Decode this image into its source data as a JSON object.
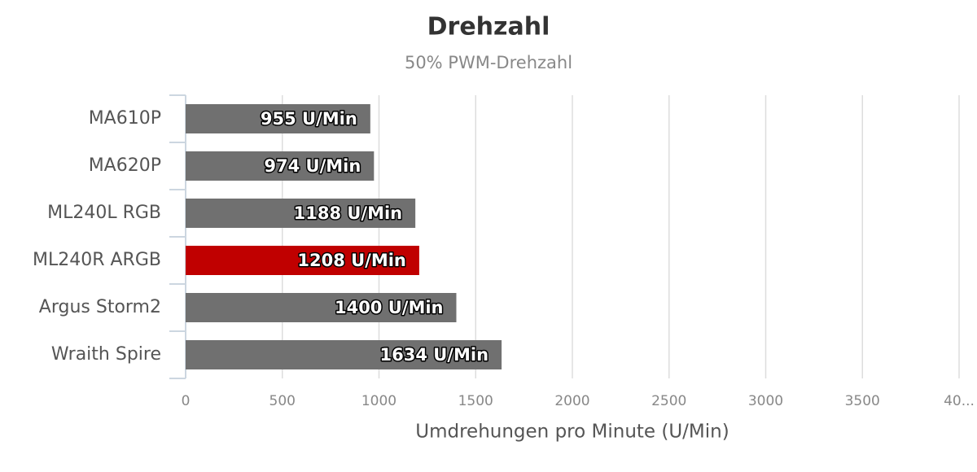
{
  "chart_data": {
    "type": "hbar",
    "title": "Drehzahl",
    "subtitle": "50% PWM-Drehzahl",
    "x_label": "Umdrehungen pro Minute (U/Min)",
    "categories": [
      "MA610P",
      "MA620P",
      "ML240L RGB",
      "ML240R ARGB",
      "Argus Storm2",
      "Wraith Spire"
    ],
    "values": [
      955,
      974,
      1188,
      1208,
      1400,
      1634
    ],
    "value_labels": [
      "955 U/Min",
      "974 U/Min",
      "1188 U/Min",
      "1208 U/Min",
      "1400 U/Min",
      "1634 U/Min"
    ],
    "colors": [
      "#707070",
      "#707070",
      "#707070",
      "#c00000",
      "#707070",
      "#707070"
    ],
    "xlim": [
      0,
      4000
    ],
    "xticks": [
      0,
      500,
      1000,
      1500,
      2000,
      2500,
      3000,
      3500,
      {
        "value": 4000,
        "label": "40..."
      }
    ],
    "grid": true
  }
}
